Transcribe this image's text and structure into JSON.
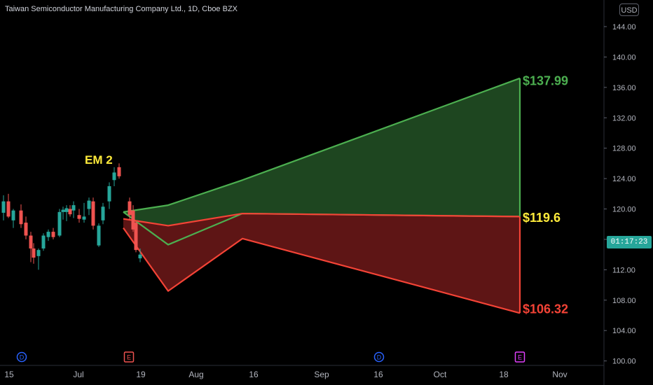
{
  "header": {
    "title": "Taiwan Semiconductor Manufacturing Company Ltd., 1D, Cboe BZX",
    "currency": "USD"
  },
  "countdown": "01:17:23",
  "colors": {
    "background": "#000000",
    "up": "#26a69a",
    "down": "#ef5350",
    "upper_band": "#4caf50",
    "upper_fill": "#1e4620",
    "lower_band": "#f44336",
    "lower_fill": "#5e1515",
    "label_mid": "#ffeb3b",
    "event_earnings": "#ef5350",
    "event_earnings_future": "#e040fb",
    "event_dividend": "#2962ff"
  },
  "chart_data": {
    "type": "candlestick",
    "y_axis": {
      "ticks": [
        "100.00",
        "104.00",
        "108.00",
        "112.00",
        "116.00",
        "120.00",
        "124.00",
        "128.00",
        "132.00",
        "136.00",
        "140.00",
        "144.00"
      ],
      "ylim": [
        99,
        147.5
      ]
    },
    "x_axis": {
      "ticks": [
        "15",
        "Jul",
        "19",
        "Aug",
        "16",
        "Sep",
        "16",
        "Oct",
        "18",
        "Nov"
      ]
    },
    "annotation": "EM 2",
    "candles": [
      {
        "o": 119.5,
        "h": 121.8,
        "l": 118.5,
        "c": 121.0
      },
      {
        "o": 121.0,
        "h": 122.0,
        "l": 118.8,
        "c": 119.0
      },
      {
        "o": 118.5,
        "h": 120.0,
        "l": 117.5,
        "c": 119.8
      },
      {
        "o": 119.8,
        "h": 120.6,
        "l": 117.5,
        "c": 118.0
      },
      {
        "o": 118.2,
        "h": 119.0,
        "l": 116.0,
        "c": 116.5
      },
      {
        "o": 116.5,
        "h": 117.0,
        "l": 113.0,
        "c": 114.8
      },
      {
        "o": 114.8,
        "h": 115.5,
        "l": 112.8,
        "c": 113.6
      },
      {
        "o": 113.8,
        "h": 114.8,
        "l": 112.0,
        "c": 114.6
      },
      {
        "o": 114.8,
        "h": 116.8,
        "l": 114.5,
        "c": 116.5
      },
      {
        "o": 116.3,
        "h": 117.3,
        "l": 115.8,
        "c": 117.0
      },
      {
        "o": 117.0,
        "h": 117.5,
        "l": 116.0,
        "c": 116.3
      },
      {
        "o": 116.5,
        "h": 120.0,
        "l": 116.3,
        "c": 119.6
      },
      {
        "o": 119.6,
        "h": 120.3,
        "l": 118.6,
        "c": 119.9
      },
      {
        "o": 119.6,
        "h": 120.5,
        "l": 118.4,
        "c": 120.1
      },
      {
        "o": 120.0,
        "h": 120.5,
        "l": 119.0,
        "c": 119.3
      },
      {
        "o": 119.8,
        "h": 121.0,
        "l": 118.8,
        "c": 120.5
      },
      {
        "o": 119.2,
        "h": 120.0,
        "l": 118.2,
        "c": 118.7
      },
      {
        "o": 118.6,
        "h": 120.8,
        "l": 118.2,
        "c": 119.0
      },
      {
        "o": 120.0,
        "h": 121.5,
        "l": 119.2,
        "c": 121.1
      },
      {
        "o": 121.0,
        "h": 121.5,
        "l": 117.3,
        "c": 117.8
      },
      {
        "o": 115.2,
        "h": 118.1,
        "l": 115.0,
        "c": 117.8
      },
      {
        "o": 118.5,
        "h": 120.8,
        "l": 118.0,
        "c": 120.3
      },
      {
        "o": 121.0,
        "h": 123.5,
        "l": 120.0,
        "c": 123.0
      },
      {
        "o": 123.8,
        "h": 125.5,
        "l": 123.0,
        "c": 124.8
      },
      {
        "o": 125.5,
        "h": 126.0,
        "l": 124.0,
        "c": 124.3
      },
      {
        "o": 121.0,
        "h": 121.5,
        "l": 118.5,
        "c": 119.2
      },
      {
        "o": 119.8,
        "h": 120.5,
        "l": 117.0,
        "c": 117.3
      },
      {
        "o": 118.2,
        "h": 118.4,
        "l": 114.3,
        "c": 114.6
      },
      {
        "o": 113.5,
        "h": 114.8,
        "l": 113.0,
        "c": 114.0
      }
    ],
    "expected_move": {
      "upper_label": "$137.99",
      "mid_label": "$119.6",
      "lower_label": "$106.32",
      "upper_outer": [
        119.6,
        120.5,
        123.8,
        137.2
      ],
      "upper_inner": [
        119.6,
        115.3,
        119.4,
        119.0
      ],
      "lower_inner": [
        118.7,
        117.8,
        119.4,
        119.0
      ],
      "lower_outer": [
        117.5,
        109.2,
        116.1,
        106.3
      ]
    },
    "events": [
      {
        "type": "dividend",
        "label": "D"
      },
      {
        "type": "earnings",
        "label": "E"
      },
      {
        "type": "dividend",
        "label": "D"
      },
      {
        "type": "earnings_future",
        "label": "E"
      }
    ]
  }
}
